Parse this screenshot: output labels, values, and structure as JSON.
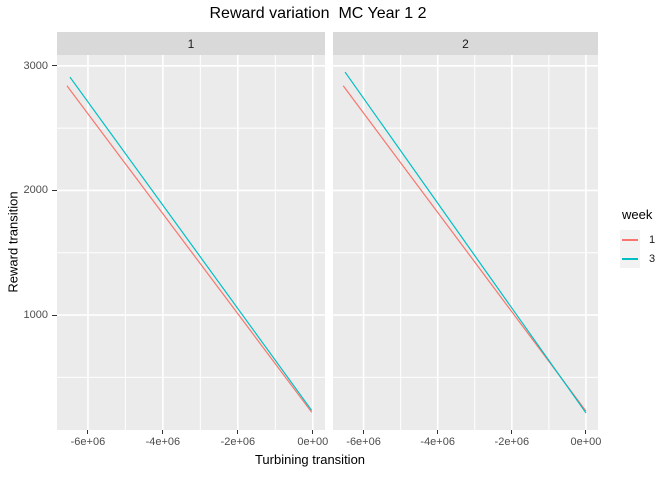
{
  "title": "Reward variation  MC Year 1 2",
  "chart_data": {
    "type": "line",
    "title": "Reward variation  MC Year 1 2",
    "xlabel": "Turbining transition",
    "ylabel": "Reward transition",
    "grid": true,
    "legend_position": "right",
    "legend": {
      "title": "week",
      "entries": [
        {
          "label": "1",
          "color": "#F8766D"
        },
        {
          "label": "3",
          "color": "#00BFC4"
        }
      ]
    },
    "facets": [
      {
        "label": "1",
        "series": [
          {
            "name": "1",
            "color": "#F8766D",
            "points": [
              [
                -6560000,
                2840
              ],
              [
                -30000,
                220
              ]
            ]
          },
          {
            "name": "3",
            "color": "#00BFC4",
            "points": [
              [
                -6480000,
                2910
              ],
              [
                -30000,
                235
              ]
            ]
          }
        ]
      },
      {
        "label": "2",
        "series": [
          {
            "name": "1",
            "color": "#F8766D",
            "points": [
              [
                -6550000,
                2840
              ],
              [
                0,
                230
              ]
            ]
          },
          {
            "name": "3",
            "color": "#00BFC4",
            "points": [
              [
                -6500000,
                2950
              ],
              [
                0,
                215
              ]
            ]
          }
        ]
      }
    ],
    "x_ticks": {
      "values": [
        -6000000,
        -4000000,
        -2000000,
        0
      ],
      "labels": [
        "-6e+06",
        "-4e+06",
        "-2e+06",
        "0e+00"
      ],
      "minor": [
        -5000000,
        -3000000,
        -1000000
      ]
    },
    "y_ticks": {
      "values": [
        3000,
        2000,
        1000
      ],
      "labels": [
        "3000",
        "2000",
        "1000"
      ],
      "minor": [
        2500,
        1500,
        500
      ]
    },
    "x_range": [
      -6825000,
      325000
    ],
    "y_range": [
      78,
      3087
    ],
    "colors": {
      "panel_bg": "#EBEBEB",
      "strip_bg": "#D9D9D9",
      "grid": "#FFFFFF",
      "tick": "#333333",
      "axis_text": "#4D4D4D",
      "legend_key_bg": "#F2F2F2"
    }
  }
}
